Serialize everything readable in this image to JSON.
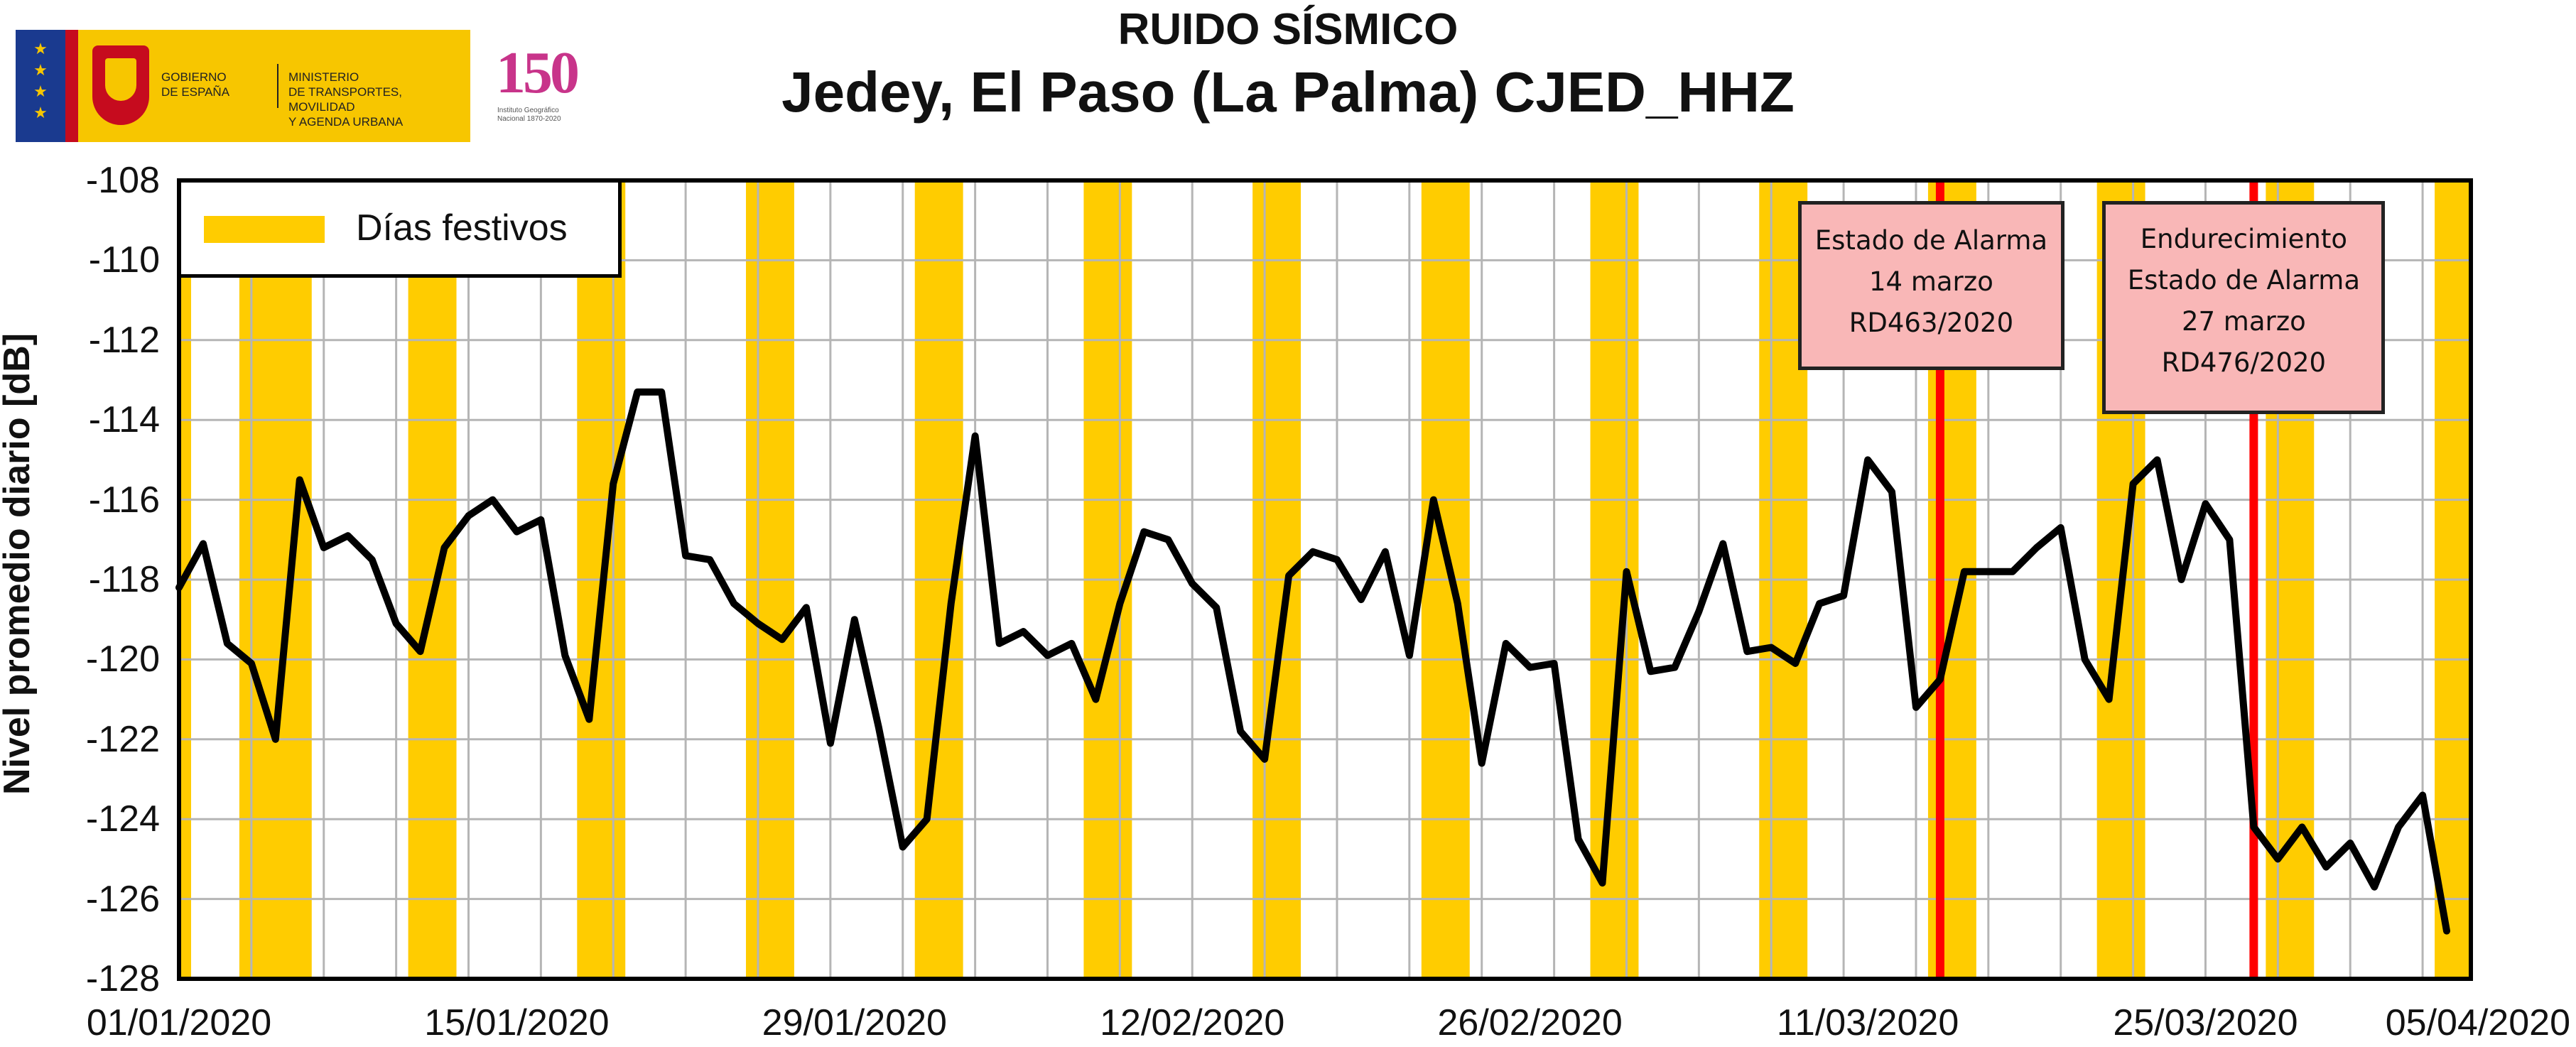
{
  "logos": {
    "government": {
      "gobierno_lines": [
        "GOBIERNO",
        "DE ESPAÑA"
      ],
      "ministerio_lines": [
        "MINISTERIO",
        "DE TRANSPORTES, MOVILIDAD",
        "Y AGENDA URBANA"
      ]
    },
    "ign": {
      "number": "150",
      "caption_lines": [
        "Instituto Geográfico",
        "Nacional 1870-2020"
      ]
    }
  },
  "colors": {
    "holiday_band": "#ffcc00",
    "series_line": "#000000",
    "event_line": "#ff0000",
    "annotation_bg": "#f9b7b7",
    "grid": "#b5b5b5"
  },
  "chart_data": {
    "type": "line",
    "title": "RUIDO SÍSMICO",
    "subtitle": "Jedey, El Paso (La Palma) CJED_HHZ",
    "xlabel": "",
    "ylabel": "Nivel promedio diario [dB]",
    "ylim": [
      -128,
      -108
    ],
    "yticks": [
      -108,
      -110,
      -112,
      -114,
      -116,
      -118,
      -120,
      -122,
      -124,
      -126,
      -128
    ],
    "xlim": [
      "2020-01-01",
      "2020-04-05"
    ],
    "xtick_labels": [
      "01/01/2020",
      "15/01/2020",
      "29/01/2020",
      "12/02/2020",
      "26/02/2020",
      "11/03/2020",
      "25/03/2020",
      "05/04/2020"
    ],
    "grid": true,
    "legend": {
      "position": "top-left",
      "entries": [
        {
          "label": "Días festivos",
          "color": "#ffcc00"
        }
      ]
    },
    "holiday_bands": [
      [
        "2020-01-01",
        "2020-01-01"
      ],
      [
        "2020-01-04",
        "2020-01-06"
      ],
      [
        "2020-01-11",
        "2020-01-12"
      ],
      [
        "2020-01-18",
        "2020-01-19"
      ],
      [
        "2020-01-25",
        "2020-01-26"
      ],
      [
        "2020-02-01",
        "2020-02-02"
      ],
      [
        "2020-02-08",
        "2020-02-09"
      ],
      [
        "2020-02-15",
        "2020-02-16"
      ],
      [
        "2020-02-22",
        "2020-02-23"
      ],
      [
        "2020-02-29",
        "2020-03-01"
      ],
      [
        "2020-03-07",
        "2020-03-08"
      ],
      [
        "2020-03-14",
        "2020-03-15"
      ],
      [
        "2020-03-21",
        "2020-03-22"
      ],
      [
        "2020-03-28",
        "2020-03-29"
      ],
      [
        "2020-04-04",
        "2020-04-05"
      ]
    ],
    "events": [
      {
        "date": "2020-03-14",
        "lines": [
          "Estado de Alarma",
          "14 marzo",
          "RD463/2020"
        ]
      },
      {
        "date": "2020-03-27",
        "lines": [
          "Endurecimiento",
          "Estado de Alarma",
          "27 marzo",
          "RD476/2020"
        ]
      }
    ],
    "series": [
      {
        "start_date": "2020-01-01",
        "values": [
          -118.2,
          -117.1,
          -119.6,
          -120.1,
          -122.0,
          -115.5,
          -117.2,
          -116.9,
          -117.5,
          -119.1,
          -119.8,
          -117.2,
          -116.4,
          -116.0,
          -116.8,
          -116.5,
          -119.9,
          -121.5,
          -115.6,
          -113.3,
          -113.3,
          -117.4,
          -117.5,
          -118.6,
          -119.1,
          -119.5,
          -118.7,
          -122.1,
          -119.0,
          -121.7,
          -124.7,
          -124.0,
          -118.6,
          -114.4,
          -119.6,
          -119.3,
          -119.9,
          -119.6,
          -121.0,
          -118.6,
          -116.8,
          -117.0,
          -118.1,
          -118.7,
          -121.8,
          -122.5,
          -117.9,
          -117.3,
          -117.5,
          -118.5,
          -117.3,
          -119.9,
          -116.0,
          -118.6,
          -122.6,
          -119.6,
          -120.2,
          -120.1,
          -124.5,
          -125.6,
          -117.8,
          -120.3,
          -120.2,
          -118.8,
          -117.1,
          -119.8,
          -119.7,
          -120.1,
          -118.6,
          -118.4,
          -115.0,
          -115.8,
          -121.2,
          -120.5,
          -117.8,
          -117.8,
          -117.8,
          -117.2,
          -116.7,
          -120.0,
          -121.0,
          -115.6,
          -115.0,
          -118.0,
          -116.1,
          -117.0,
          -124.2,
          -125.0,
          -124.2,
          -125.2,
          -124.6,
          -125.7,
          -124.2,
          -123.4,
          -126.8
        ]
      }
    ]
  }
}
